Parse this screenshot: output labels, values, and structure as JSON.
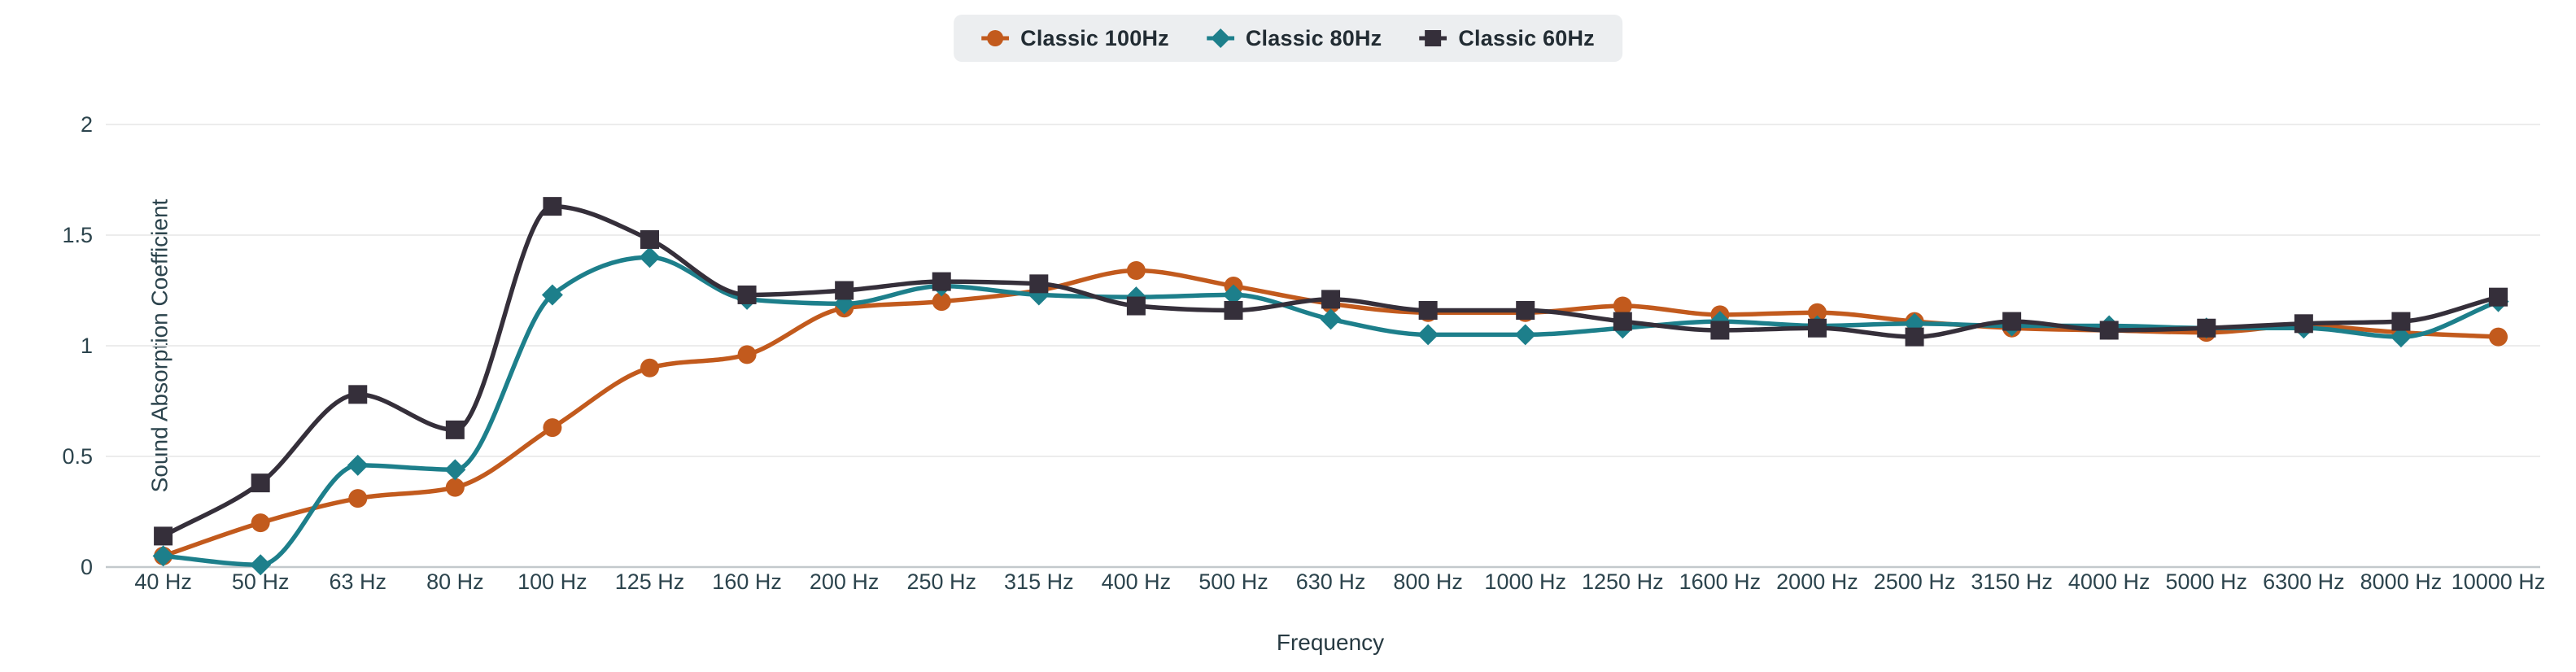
{
  "chart_data": {
    "type": "line",
    "title": "",
    "xlabel": "Frequency",
    "ylabel": "Sound Absorption Coefficient",
    "categories": [
      "40 Hz",
      "50 Hz",
      "63 Hz",
      "80 Hz",
      "100 Hz",
      "125 Hz",
      "160 Hz",
      "200 Hz",
      "250 Hz",
      "315 Hz",
      "400 Hz",
      "500 Hz",
      "630 Hz",
      "800 Hz",
      "1000 Hz",
      "1250 Hz",
      "1600 Hz",
      "2000 Hz",
      "2500 Hz",
      "3150 Hz",
      "4000 Hz",
      "5000 Hz",
      "6300 Hz",
      "8000 Hz",
      "10000 Hz"
    ],
    "y_ticks": [
      "0",
      "0.5",
      "1",
      "1.5",
      "2"
    ],
    "y_tick_values": [
      0,
      0.5,
      1,
      1.5,
      2
    ],
    "ylim": [
      0,
      2
    ],
    "grid": true,
    "legend_position": "top-center",
    "series": [
      {
        "name": "Classic 100Hz",
        "marker": "circle",
        "color": "#c25a1d",
        "values": [
          0.05,
          0.2,
          0.31,
          0.36,
          0.63,
          0.9,
          0.96,
          1.17,
          1.2,
          1.25,
          1.34,
          1.27,
          1.19,
          1.15,
          1.15,
          1.18,
          1.14,
          1.15,
          1.11,
          1.08,
          1.07,
          1.06,
          1.09,
          1.06,
          1.04
        ]
      },
      {
        "name": "Classic 80Hz",
        "marker": "diamond",
        "color": "#1d7f8b",
        "values": [
          0.05,
          0.01,
          0.46,
          0.44,
          1.23,
          1.4,
          1.21,
          1.19,
          1.27,
          1.23,
          1.22,
          1.23,
          1.12,
          1.05,
          1.05,
          1.08,
          1.11,
          1.09,
          1.1,
          1.09,
          1.09,
          1.08,
          1.08,
          1.04,
          1.2
        ]
      },
      {
        "name": "Classic 60Hz",
        "marker": "square",
        "color": "#352f3a",
        "values": [
          0.14,
          0.38,
          0.78,
          0.62,
          1.63,
          1.48,
          1.23,
          1.25,
          1.29,
          1.28,
          1.18,
          1.16,
          1.21,
          1.16,
          1.16,
          1.11,
          1.07,
          1.08,
          1.04,
          1.11,
          1.07,
          1.08,
          1.1,
          1.11,
          1.22
        ]
      }
    ]
  },
  "style": {
    "legend_bg": "#eceef0",
    "grid_color": "#ececec",
    "axis_line_color": "#c3c9cc",
    "tick_text_color": "#2c444d",
    "legend_text_color": "#222c33",
    "background": "#ffffff"
  }
}
